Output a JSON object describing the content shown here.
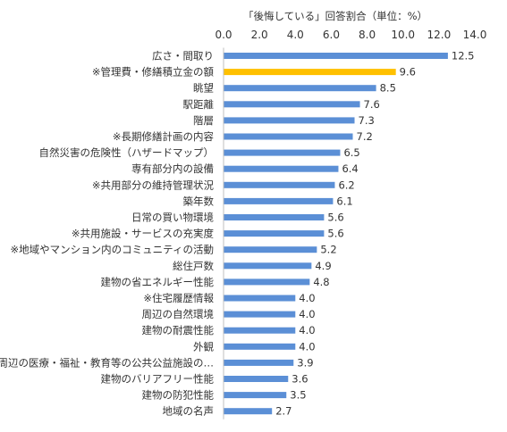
{
  "chart_data": {
    "type": "bar",
    "orientation": "horizontal",
    "title": "「後悔している」回答割合（単位：%）",
    "categories": [
      "広さ・間取り",
      "※管理費・修繕積立金の額",
      "眺望",
      "駅距離",
      "階層",
      "※長期修繕計画の内容",
      "自然災害の危険性（ハザードマップ）",
      "専有部分内の設備",
      "※共用部分の維持管理状況",
      "築年数",
      "日常の買い物環境",
      "※共用施設・サービスの充実度",
      "※地域やマンション内のコミュニティの活動",
      "総住戸数",
      "建物の省エネルギー性能",
      "※住宅履歴情報",
      "周辺の自然環境",
      "建物の耐震性能",
      "外観",
      "周辺の医療・福祉・教育等の公共公益施設の…",
      "建物のバリアフリー性能",
      "建物の防犯性能",
      "地域の名声"
    ],
    "values": [
      12.5,
      9.6,
      8.5,
      7.6,
      7.3,
      7.2,
      6.5,
      6.4,
      6.2,
      6.1,
      5.6,
      5.6,
      5.2,
      4.9,
      4.8,
      4.0,
      4.0,
      4.0,
      4.0,
      3.9,
      3.6,
      3.5,
      2.7
    ],
    "value_labels": [
      "12.5",
      "9.6",
      "8.5",
      "7.6",
      "7.3",
      "7.2",
      "6.5",
      "6.4",
      "6.2",
      "6.1",
      "5.6",
      "5.6",
      "5.2",
      "4.9",
      "4.8",
      "4.0",
      "4.0",
      "4.0",
      "4.0",
      "3.9",
      "3.6",
      "3.5",
      "2.7"
    ],
    "highlight_index": 1,
    "xlim": [
      0,
      14
    ],
    "x_ticks": [
      "0.0",
      "2.0",
      "4.0",
      "6.0",
      "8.0",
      "10.0",
      "12.0",
      "14.0"
    ],
    "grid": false,
    "colors": {
      "bar": "#5b8fd6",
      "highlight": "#ffc000",
      "axis": "#bfbfbf",
      "text": "#333333"
    }
  }
}
